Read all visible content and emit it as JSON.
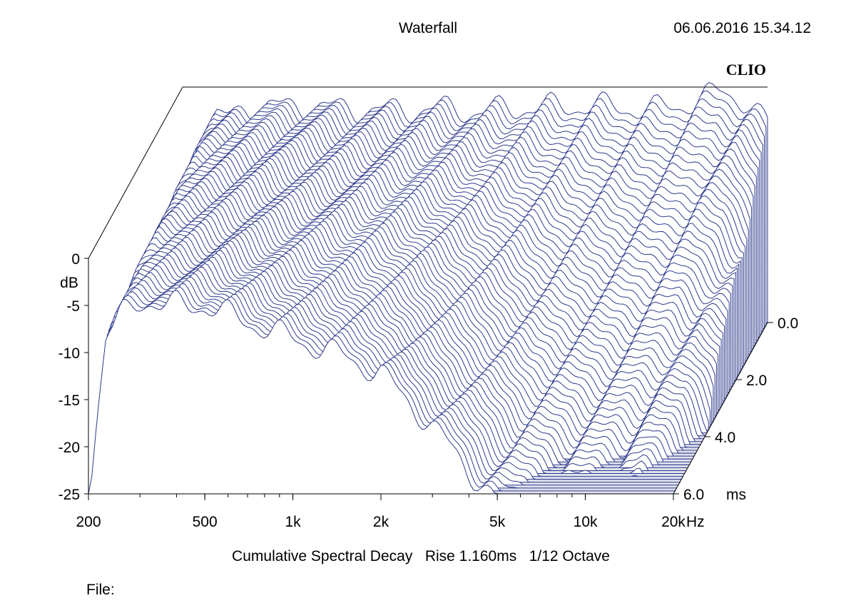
{
  "chart_data": {
    "type": "waterfall",
    "title": "Waterfall",
    "timestamp": "06.06.2016 15.34.12",
    "brand": "CLIO",
    "subtitle": "Cumulative Spectral Decay   Rise 1.160ms   1/12 Octave",
    "file_label": "File:",
    "x_axis": {
      "scale": "log",
      "range": [
        200,
        20000
      ],
      "ticks": [
        {
          "value": 200,
          "label": "200"
        },
        {
          "value": 500,
          "label": "500"
        },
        {
          "value": 1000,
          "label": "1k"
        },
        {
          "value": 2000,
          "label": "2k"
        },
        {
          "value": 5000,
          "label": "5k"
        },
        {
          "value": 10000,
          "label": "10k"
        },
        {
          "value": 20000,
          "label": "20k"
        }
      ],
      "unit": "Hz"
    },
    "y_axis": {
      "range": [
        -25,
        0
      ],
      "ticks": [
        {
          "value": 0,
          "label": "0"
        },
        {
          "value": -5,
          "label": "-5"
        },
        {
          "value": -10,
          "label": "-10"
        },
        {
          "value": -15,
          "label": "-15"
        },
        {
          "value": -20,
          "label": "-20"
        },
        {
          "value": -25,
          "label": "-25"
        }
      ],
      "unit": "dB"
    },
    "z_axis": {
      "range": [
        0,
        6
      ],
      "ticks": [
        {
          "value": 0,
          "label": "0.0"
        },
        {
          "value": 2,
          "label": "2.0"
        },
        {
          "value": 4,
          "label": "4.0"
        },
        {
          "value": 6,
          "label": "6.0"
        }
      ],
      "unit": "ms"
    },
    "slice_count": 60,
    "initial_response": [
      {
        "hz": 200,
        "db": -25
      },
      {
        "hz": 215,
        "db": -15
      },
      {
        "hz": 230,
        "db": -6
      },
      {
        "hz": 260,
        "db": -3
      },
      {
        "hz": 300,
        "db": -2.5
      },
      {
        "hz": 400,
        "db": -2.2
      },
      {
        "hz": 500,
        "db": -2.0
      },
      {
        "hz": 700,
        "db": -2.3
      },
      {
        "hz": 1000,
        "db": -2.5
      },
      {
        "hz": 1500,
        "db": -2.3
      },
      {
        "hz": 2000,
        "db": -2.6
      },
      {
        "hz": 3000,
        "db": -2.2
      },
      {
        "hz": 5000,
        "db": -2.0
      },
      {
        "hz": 8000,
        "db": -2.4
      },
      {
        "hz": 10000,
        "db": -2.0
      },
      {
        "hz": 14000,
        "db": -0.5
      },
      {
        "hz": 17000,
        "db": -1.5
      },
      {
        "hz": 20000,
        "db": -4.0
      }
    ],
    "decay_rate_db_per_ms": [
      {
        "hz": 200,
        "rate": 0.3
      },
      {
        "hz": 300,
        "rate": 0.4
      },
      {
        "hz": 500,
        "rate": 0.5
      },
      {
        "hz": 1000,
        "rate": 1.0
      },
      {
        "hz": 2000,
        "rate": 1.6
      },
      {
        "hz": 3000,
        "rate": 2.6
      },
      {
        "hz": 5000,
        "rate": 4.0
      },
      {
        "hz": 10000,
        "rate": 4.5
      },
      {
        "hz": 20000,
        "rate": 5.0
      }
    ],
    "colors": {
      "line": "#2e3a8c",
      "fill": "#ffffff",
      "floor": "#2e3a8c",
      "axis": "#000000"
    }
  }
}
